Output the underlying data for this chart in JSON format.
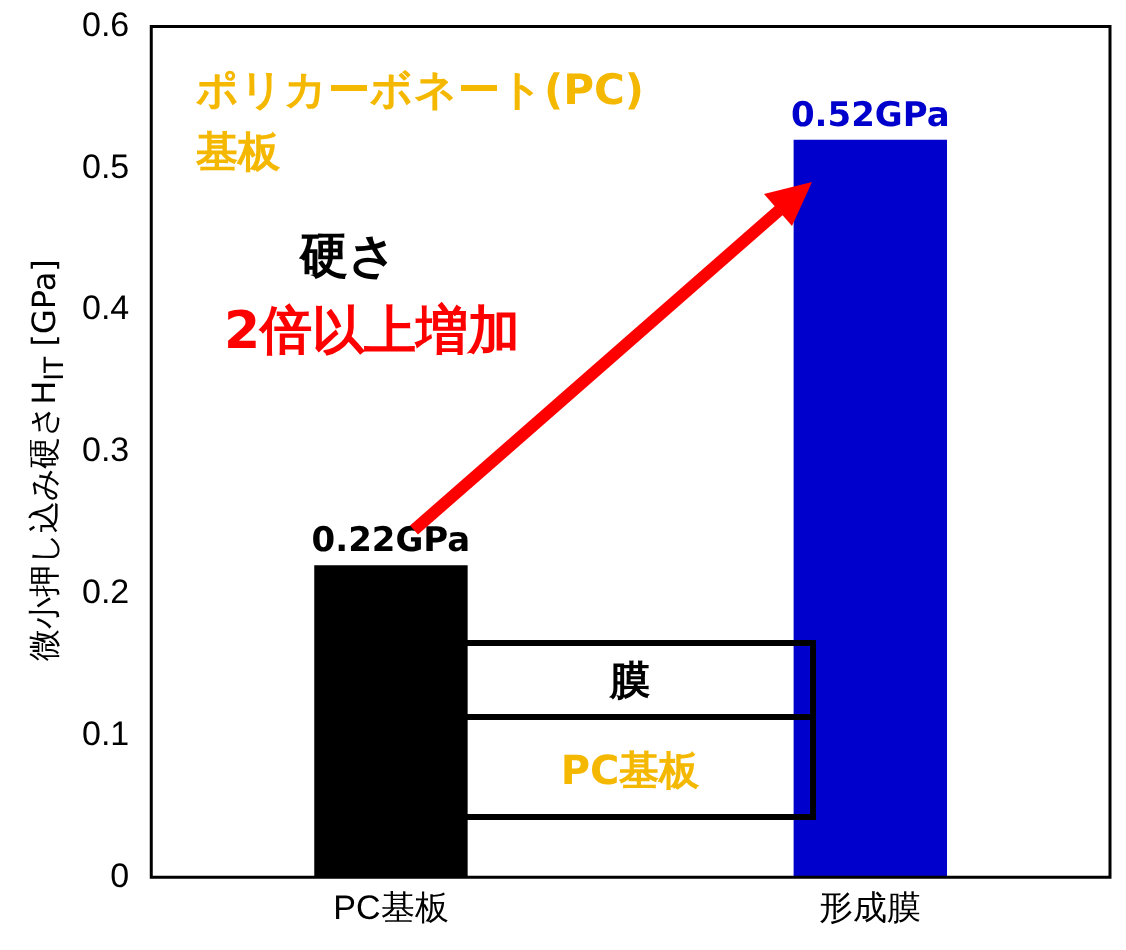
{
  "chart_data": {
    "type": "bar",
    "ylabel": "微小押し込み硬さH$_{IT}$ [GPa]",
    "categories": [
      "PC基板",
      "形成膜"
    ],
    "values": [
      0.22,
      0.52
    ],
    "colors": [
      "#000000",
      "#0000cc"
    ],
    "value_labels": [
      "0.22GPa",
      "0.52GPa"
    ],
    "ylim": [
      0,
      0.6
    ],
    "yticks": [
      0,
      0.1,
      0.2,
      0.3,
      0.4,
      0.5,
      0.6
    ],
    "grid": false,
    "legend": false,
    "annotations": [
      "ポリカーボネート(PC)基板",
      "硬さ",
      "2倍以上増加",
      "膜",
      "PC基板"
    ]
  }
}
